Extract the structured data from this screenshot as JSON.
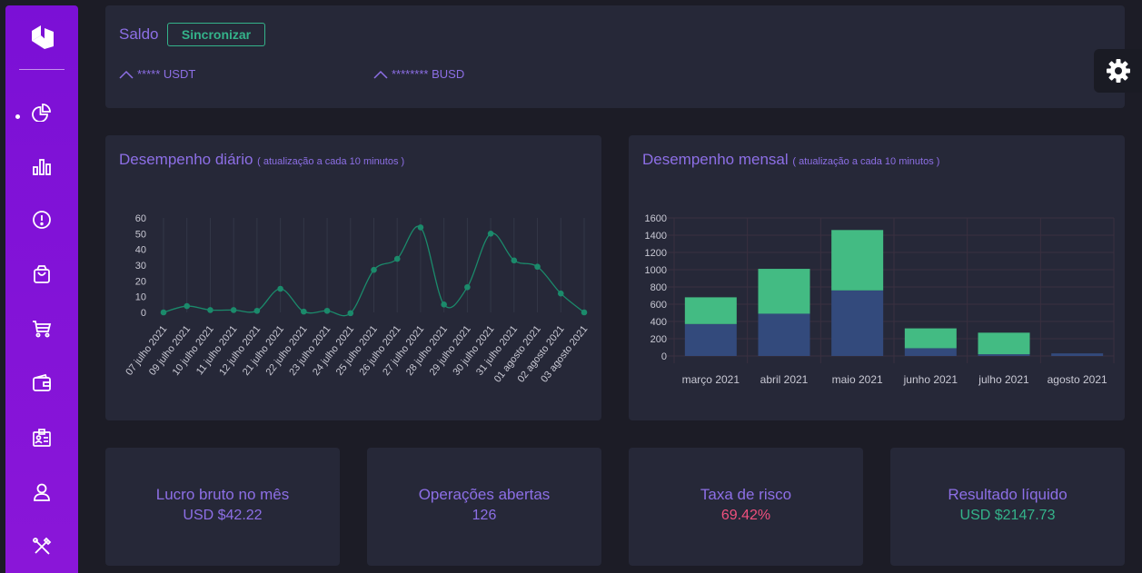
{
  "sidebar": {
    "items": [
      {
        "name": "dashboard",
        "icon": "pie-chart-icon",
        "active": true
      },
      {
        "name": "reports",
        "icon": "bar-chart-icon"
      },
      {
        "name": "alerts",
        "icon": "alert-circle-icon"
      },
      {
        "name": "orders",
        "icon": "shopping-bag-icon"
      },
      {
        "name": "cart",
        "icon": "shopping-cart-icon"
      },
      {
        "name": "wallet",
        "icon": "wallet-icon"
      },
      {
        "name": "id-card",
        "icon": "id-card-icon"
      },
      {
        "name": "profile",
        "icon": "user-icon"
      },
      {
        "name": "tools",
        "icon": "tools-icon"
      }
    ]
  },
  "saldo": {
    "title": "Saldo",
    "sync_label": "Sincronizar",
    "balances": [
      {
        "text": "***** USDT"
      },
      {
        "text": "******** BUSD"
      }
    ]
  },
  "settings": {
    "icon": "gear-icon"
  },
  "daily": {
    "title": "Desempenho diário",
    "note": "( atualização a cada 10 minutos )"
  },
  "monthly": {
    "title": "Desempenho mensal",
    "note": "( atualização a cada 10 minutos )"
  },
  "stats": [
    {
      "label": "Lucro bruto no mês",
      "value": "USD $42.22",
      "color": "#8d6fe6"
    },
    {
      "label": "Operações abertas",
      "value": "126",
      "color": "#8d6fe6"
    },
    {
      "label": "Taxa de risco",
      "value": "69.42%",
      "color": "#f0507e"
    },
    {
      "label": "Resultado líquido",
      "value": "USD $2147.73",
      "color": "#34b38a"
    }
  ],
  "colors": {
    "accent": "#8d6fe6",
    "green": "#34b38a",
    "bar_green": "#43bb83",
    "bar_blue": "#334a7c",
    "card": "#262838",
    "background": "#1c1c26",
    "sidebar": "#7b10d6"
  },
  "chart_data": [
    {
      "type": "line",
      "x": [
        "07 julho 2021",
        "09 julho 2021",
        "10 julho 2021",
        "11 julho 2021",
        "12 julho 2021",
        "21 julho 2021",
        "22 julho 2021",
        "23 julho 2021",
        "24 julho 2021",
        "25 julho 2021",
        "26 julho 2021",
        "27 julho 2021",
        "28 julho 2021",
        "29 julho 2021",
        "30 julho 2021",
        "31 julho 2021",
        "01 agosto 2021",
        "02 agosto 2021",
        "03 agosto 2021"
      ],
      "values": [
        0,
        4,
        1.5,
        1.5,
        1,
        15,
        0.5,
        1,
        -0.5,
        27,
        34,
        54,
        5,
        16,
        50,
        33,
        29,
        12,
        0
      ],
      "ylim": [
        0,
        60
      ],
      "yticks": [
        0,
        10,
        20,
        30,
        40,
        50,
        60
      ],
      "grid": "vertical",
      "color": "#1b8a6b"
    },
    {
      "type": "bar",
      "stacked": true,
      "categories": [
        "março 2021",
        "abril 2021",
        "maio 2021",
        "junho 2021",
        "julho 2021",
        "agosto 2021"
      ],
      "series": [
        {
          "values": [
            370,
            490,
            760,
            90,
            20,
            30
          ],
          "color": "#334a7c"
        },
        {
          "values": [
            310,
            520,
            700,
            230,
            250,
            0
          ],
          "color": "#43bb83"
        }
      ],
      "ylim": [
        0,
        1600
      ],
      "yticks": [
        0,
        200,
        400,
        600,
        800,
        1000,
        1200,
        1400,
        1600
      ],
      "grid": "both"
    }
  ]
}
